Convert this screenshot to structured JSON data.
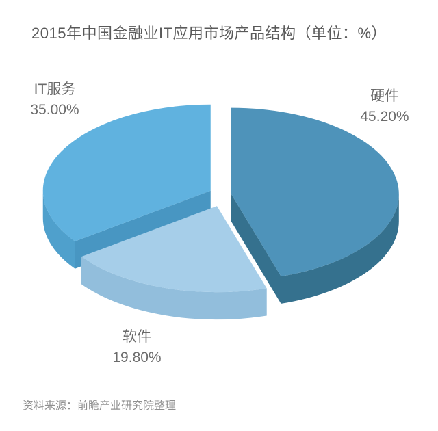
{
  "title": "2015年中国金融业IT应用市场产品结构（单位：%）",
  "source": "资料来源：前瞻产业研究院整理",
  "chart_data": {
    "type": "pie",
    "style": "3d-exploded",
    "title": "2015年中国金融业IT应用市场产品结构（单位：%）",
    "unit": "%",
    "start_angle_deg": 0,
    "direction": "clockwise",
    "legend_position": "none",
    "background": "#ffffff",
    "slices": [
      {
        "label": "硬件",
        "value": 45.2,
        "value_label": "45.20%",
        "color_top": "#4E93BA",
        "color_wall": "#35718E",
        "color_cut": "#35718E"
      },
      {
        "label": "软件",
        "value": 19.8,
        "value_label": "19.80%",
        "color_top": "#A6CEE9",
        "color_wall": "#92BEDC",
        "color_cut": "#92BEDC"
      },
      {
        "label": "IT服务",
        "value": 35.0,
        "value_label": "35.00%",
        "color_top": "#60B2DF",
        "color_wall": "#4FA0CC",
        "color_cut": "#4896C2"
      }
    ]
  }
}
